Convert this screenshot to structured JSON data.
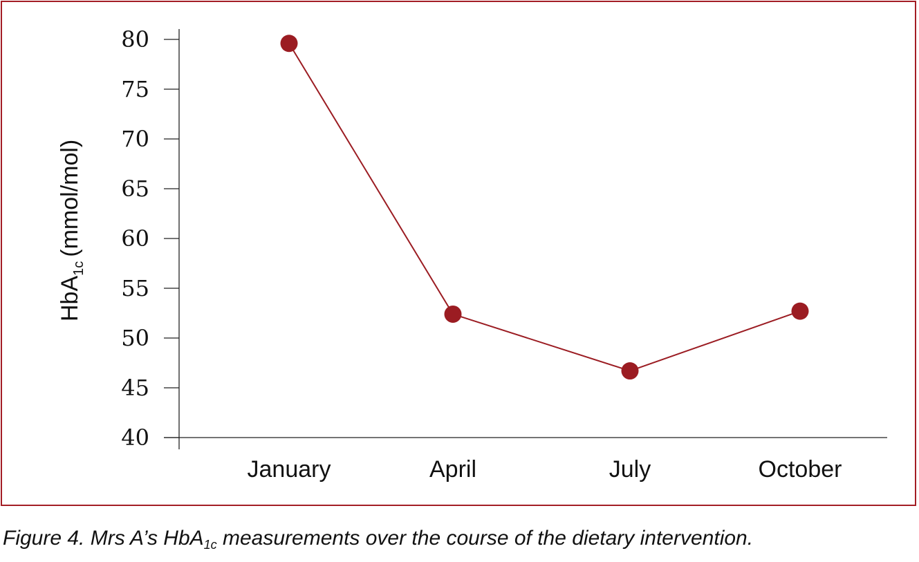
{
  "chart_data": {
    "type": "line",
    "categories": [
      "January",
      "April",
      "July",
      "October"
    ],
    "series": [
      {
        "values": [
          79.6,
          52.4,
          46.7,
          52.7
        ]
      }
    ],
    "ylabel_main": "HbA",
    "ylabel_sub": "1c",
    "ylabel_unit": "(mmol/mol)",
    "ylim": [
      40,
      80
    ],
    "yticks": [
      40,
      45,
      50,
      55,
      60,
      65,
      70,
      75,
      80
    ],
    "grid": false,
    "colors": {
      "line": "#9b1c22",
      "marker": "#9b1c22",
      "border": "#a31d24",
      "axis": "#222222"
    }
  },
  "caption": {
    "prefix": "Figure 4. Mrs A’s HbA",
    "sub": "1c",
    "suffix": " measurements over the course of the dietary intervention."
  }
}
